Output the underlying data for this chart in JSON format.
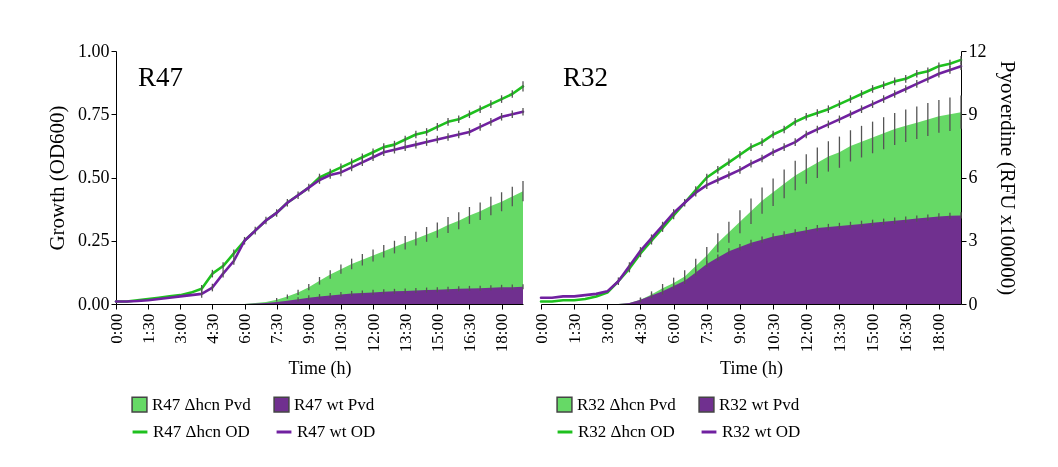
{
  "chart_data": [
    {
      "type": "line",
      "title": "R47",
      "xlabel": "Time (h)",
      "ylabel": "Growth (OD600)",
      "legend": "bottom",
      "tick_labels": [
        "x",
        "y"
      ],
      "x": [
        0,
        0.5,
        1,
        1.5,
        2,
        2.5,
        3,
        3.5,
        4,
        4.5,
        5,
        5.5,
        6,
        6.5,
        7,
        7.5,
        8,
        8.5,
        9,
        9.5,
        10,
        10.5,
        11,
        11.5,
        12,
        12.5,
        13,
        13.5,
        14,
        14.5,
        15,
        15.5,
        16,
        16.5,
        17,
        17.5,
        18,
        18.5,
        19
      ],
      "xlim": [
        0,
        19
      ],
      "xticks": [
        {
          "value": 0,
          "label": "0:00"
        },
        {
          "value": 1.5,
          "label": "1:30"
        },
        {
          "value": 3,
          "label": "3:00"
        },
        {
          "value": 4.5,
          "label": "4:30"
        },
        {
          "value": 6,
          "label": "6:00"
        },
        {
          "value": 7.5,
          "label": "7:30"
        },
        {
          "value": 9,
          "label": "9:00"
        },
        {
          "value": 10.5,
          "label": "10:30"
        },
        {
          "value": 12,
          "label": "12:00"
        },
        {
          "value": 13.5,
          "label": "13:30"
        },
        {
          "value": 15,
          "label": "15:00"
        },
        {
          "value": 16.5,
          "label": "16:30"
        },
        {
          "value": 18,
          "label": "18:00"
        }
      ],
      "ylim": [
        0,
        1
      ],
      "yticks": [
        {
          "value": 0,
          "label": "0.00"
        },
        {
          "value": 0.25,
          "label": "0.25"
        },
        {
          "value": 0.5,
          "label": "0.50"
        },
        {
          "value": 0.75,
          "label": "0.75"
        },
        {
          "value": 1,
          "label": "1.00"
        }
      ],
      "y2lim": [
        0,
        12
      ],
      "series": [
        {
          "name": "R47 Δhcn Pvd",
          "type": "area",
          "axis": "y2",
          "color": "#66d966",
          "values": [
            0,
            0,
            0,
            0,
            0,
            0,
            0,
            0,
            0,
            0,
            0,
            0,
            0,
            0.05,
            0.1,
            0.2,
            0.35,
            0.55,
            0.8,
            1.1,
            1.4,
            1.65,
            1.9,
            2.1,
            2.3,
            2.5,
            2.7,
            2.9,
            3.1,
            3.3,
            3.5,
            3.75,
            3.95,
            4.2,
            4.4,
            4.65,
            4.85,
            5.1,
            5.35
          ],
          "errors": [
            null,
            null,
            null,
            null,
            null,
            null,
            null,
            null,
            null,
            null,
            null,
            null,
            null,
            null,
            null,
            0.08,
            0.1,
            0.12,
            0.15,
            0.18,
            0.2,
            0.22,
            0.25,
            0.27,
            0.28,
            0.3,
            0.3,
            0.32,
            0.33,
            0.35,
            0.36,
            0.38,
            0.4,
            0.4,
            0.42,
            0.44,
            0.45,
            0.46,
            0.48
          ]
        },
        {
          "name": "R47 wt Pvd",
          "type": "area",
          "axis": "y2",
          "color": "#70308f",
          "values": [
            0,
            0,
            0,
            0,
            0,
            0,
            0,
            0,
            0,
            0,
            0,
            0,
            0,
            0.02,
            0.05,
            0.1,
            0.15,
            0.22,
            0.3,
            0.35,
            0.4,
            0.45,
            0.5,
            0.52,
            0.55,
            0.58,
            0.6,
            0.62,
            0.64,
            0.66,
            0.68,
            0.7,
            0.72,
            0.74,
            0.75,
            0.77,
            0.79,
            0.8,
            0.82
          ],
          "errors": [
            null,
            null,
            null,
            null,
            null,
            null,
            null,
            null,
            null,
            null,
            null,
            null,
            null,
            null,
            null,
            null,
            null,
            0.1,
            0.12,
            0.12,
            0.12,
            0.12,
            0.12,
            0.12,
            0.12,
            0.12,
            0.12,
            0.12,
            0.12,
            0.12,
            0.12,
            0.12,
            0.12,
            0.12,
            0.12,
            0.12,
            0.12,
            0.12,
            0.12
          ]
        },
        {
          "name": "R47 Δhcn OD",
          "type": "line",
          "color": "#1ec01e",
          "values": [
            0.01,
            0.01,
            0.015,
            0.02,
            0.025,
            0.03,
            0.035,
            0.045,
            0.06,
            0.12,
            0.15,
            0.2,
            0.25,
            0.29,
            0.33,
            0.36,
            0.4,
            0.43,
            0.46,
            0.5,
            0.52,
            0.54,
            0.56,
            0.58,
            0.6,
            0.62,
            0.63,
            0.65,
            0.67,
            0.68,
            0.7,
            0.72,
            0.73,
            0.75,
            0.77,
            0.79,
            0.81,
            0.83,
            0.86
          ],
          "errors": [
            null,
            null,
            null,
            null,
            null,
            null,
            null,
            null,
            0.015,
            0.015,
            0.015,
            0.015,
            0.015,
            0.015,
            0.015,
            0.015,
            0.015,
            0.015,
            0.015,
            0.015,
            0.015,
            0.015,
            0.015,
            0.015,
            0.015,
            0.015,
            0.015,
            0.015,
            0.015,
            0.015,
            0.015,
            0.015,
            0.015,
            0.015,
            0.015,
            0.015,
            0.015,
            0.015,
            0.02
          ]
        },
        {
          "name": "R47 wt OD",
          "type": "line",
          "color": "#7020a0",
          "values": [
            0.01,
            0.01,
            0.012,
            0.015,
            0.02,
            0.025,
            0.03,
            0.035,
            0.04,
            0.065,
            0.12,
            0.17,
            0.25,
            0.29,
            0.33,
            0.36,
            0.4,
            0.43,
            0.46,
            0.49,
            0.51,
            0.52,
            0.54,
            0.56,
            0.58,
            0.6,
            0.61,
            0.62,
            0.63,
            0.64,
            0.65,
            0.66,
            0.67,
            0.68,
            0.7,
            0.72,
            0.74,
            0.75,
            0.76
          ],
          "errors": [
            null,
            null,
            null,
            null,
            null,
            null,
            null,
            null,
            0.015,
            0.015,
            0.015,
            0.015,
            null,
            null,
            null,
            null,
            null,
            null,
            null,
            0.015,
            0.015,
            0.015,
            0.015,
            0.015,
            0.015,
            0.015,
            0.015,
            0.015,
            0.015,
            0.015,
            0.015,
            0.015,
            0.015,
            0.015,
            0.015,
            0.015,
            0.015,
            0.015,
            0.015
          ]
        }
      ]
    },
    {
      "type": "line",
      "title": "R32",
      "xlabel": "Time (h)",
      "y2label": "Pyoverdine (RFU x100000)",
      "legend": "bottom",
      "tick_labels": [
        "x",
        "y2"
      ],
      "x": [
        0,
        0.5,
        1,
        1.5,
        2,
        2.5,
        3,
        3.5,
        4,
        4.5,
        5,
        5.5,
        6,
        6.5,
        7,
        7.5,
        8,
        8.5,
        9,
        9.5,
        10,
        10.5,
        11,
        11.5,
        12,
        12.5,
        13,
        13.5,
        14,
        14.5,
        15,
        15.5,
        16,
        16.5,
        17,
        17.5,
        18,
        18.5,
        19
      ],
      "xlim": [
        0,
        19
      ],
      "xticks": [
        {
          "value": 0,
          "label": "0:00"
        },
        {
          "value": 1.5,
          "label": "1:30"
        },
        {
          "value": 3,
          "label": "3:00"
        },
        {
          "value": 4.5,
          "label": "4:30"
        },
        {
          "value": 6,
          "label": "6:00"
        },
        {
          "value": 7.5,
          "label": "7:30"
        },
        {
          "value": 9,
          "label": "9:00"
        },
        {
          "value": 10.5,
          "label": "10:30"
        },
        {
          "value": 12,
          "label": "12:00"
        },
        {
          "value": 13.5,
          "label": "13:30"
        },
        {
          "value": 15,
          "label": "15:00"
        },
        {
          "value": 16.5,
          "label": "16:30"
        },
        {
          "value": 18,
          "label": "18:00"
        }
      ],
      "ylim": [
        0,
        1
      ],
      "y2lim": [
        0,
        12
      ],
      "y2ticks": [
        0,
        3,
        6,
        9,
        12
      ],
      "series": [
        {
          "name": "R32 Δhcn Pvd",
          "type": "area",
          "axis": "y2",
          "color": "#66d966",
          "values": [
            0,
            0,
            0,
            0,
            0,
            0,
            0,
            0,
            0.05,
            0.2,
            0.45,
            0.75,
            1.0,
            1.3,
            1.8,
            2.3,
            2.9,
            3.4,
            3.9,
            4.4,
            4.9,
            5.3,
            5.7,
            6.1,
            6.4,
            6.7,
            7.0,
            7.2,
            7.5,
            7.7,
            7.9,
            8.1,
            8.3,
            8.45,
            8.6,
            8.75,
            8.9,
            9.0,
            9.1
          ],
          "errors": [
            null,
            null,
            null,
            null,
            null,
            null,
            null,
            null,
            null,
            0.1,
            0.15,
            0.2,
            0.25,
            0.3,
            0.35,
            0.4,
            0.45,
            0.5,
            0.55,
            0.6,
            0.62,
            0.65,
            0.68,
            0.7,
            0.7,
            0.72,
            0.72,
            0.74,
            0.74,
            0.75,
            0.75,
            0.76,
            0.76,
            0.77,
            0.77,
            0.78,
            0.78,
            0.79,
            0.79
          ]
        },
        {
          "name": "R32 wt Pvd",
          "type": "area",
          "axis": "y2",
          "color": "#70308f",
          "values": [
            0,
            0,
            0,
            0,
            0,
            0,
            0,
            0,
            0.05,
            0.2,
            0.4,
            0.6,
            0.85,
            1.1,
            1.5,
            1.9,
            2.2,
            2.5,
            2.7,
            2.9,
            3.05,
            3.2,
            3.3,
            3.4,
            3.5,
            3.6,
            3.65,
            3.7,
            3.75,
            3.8,
            3.85,
            3.9,
            3.95,
            4.0,
            4.05,
            4.1,
            4.15,
            4.18,
            4.2
          ],
          "errors": [
            null,
            null,
            null,
            null,
            null,
            null,
            null,
            null,
            null,
            0.1,
            0.12,
            0.15,
            0.15,
            0.15,
            0.15,
            0.15,
            0.15,
            0.15,
            0.15,
            0.15,
            0.15,
            0.15,
            0.15,
            0.15,
            0.15,
            0.15,
            0.15,
            0.15,
            0.15,
            0.15,
            0.15,
            0.15,
            0.15,
            0.15,
            0.15,
            0.15,
            0.15,
            0.15,
            0.15
          ]
        },
        {
          "name": "R32 Δhcn OD",
          "type": "line",
          "color": "#1ec01e",
          "values": [
            0.01,
            0.01,
            0.015,
            0.015,
            0.02,
            0.03,
            0.045,
            0.09,
            0.14,
            0.2,
            0.25,
            0.3,
            0.35,
            0.4,
            0.45,
            0.5,
            0.53,
            0.56,
            0.59,
            0.62,
            0.64,
            0.67,
            0.69,
            0.72,
            0.74,
            0.755,
            0.77,
            0.79,
            0.81,
            0.83,
            0.85,
            0.865,
            0.88,
            0.89,
            0.91,
            0.92,
            0.94,
            0.95,
            0.965
          ],
          "errors": [
            null,
            null,
            null,
            null,
            null,
            null,
            null,
            0.015,
            0.015,
            0.015,
            0.015,
            0.015,
            0.015,
            0.015,
            0.015,
            0.015,
            0.015,
            0.015,
            0.015,
            0.015,
            0.015,
            0.015,
            0.015,
            0.015,
            0.015,
            0.015,
            0.015,
            0.015,
            0.015,
            0.015,
            0.015,
            0.015,
            0.015,
            0.015,
            0.015,
            0.015,
            0.015,
            0.015,
            0.015
          ]
        },
        {
          "name": "R32 wt OD",
          "type": "line",
          "color": "#7020a0",
          "values": [
            0.025,
            0.025,
            0.03,
            0.03,
            0.035,
            0.04,
            0.05,
            0.09,
            0.15,
            0.21,
            0.26,
            0.31,
            0.36,
            0.4,
            0.44,
            0.47,
            0.49,
            0.51,
            0.53,
            0.555,
            0.575,
            0.6,
            0.62,
            0.64,
            0.67,
            0.69,
            0.71,
            0.73,
            0.75,
            0.77,
            0.79,
            0.81,
            0.83,
            0.85,
            0.87,
            0.89,
            0.91,
            0.925,
            0.94
          ],
          "errors": [
            null,
            null,
            null,
            null,
            null,
            null,
            null,
            null,
            0.015,
            0.015,
            0.015,
            0.015,
            0.015,
            null,
            0.015,
            0.015,
            0.015,
            0.015,
            0.015,
            0.015,
            0.015,
            0.015,
            0.015,
            0.015,
            0.015,
            0.015,
            0.015,
            0.015,
            0.015,
            0.015,
            0.015,
            0.015,
            0.015,
            0.015,
            0.015,
            0.015,
            0.015,
            0.015,
            0.015
          ]
        }
      ]
    }
  ]
}
